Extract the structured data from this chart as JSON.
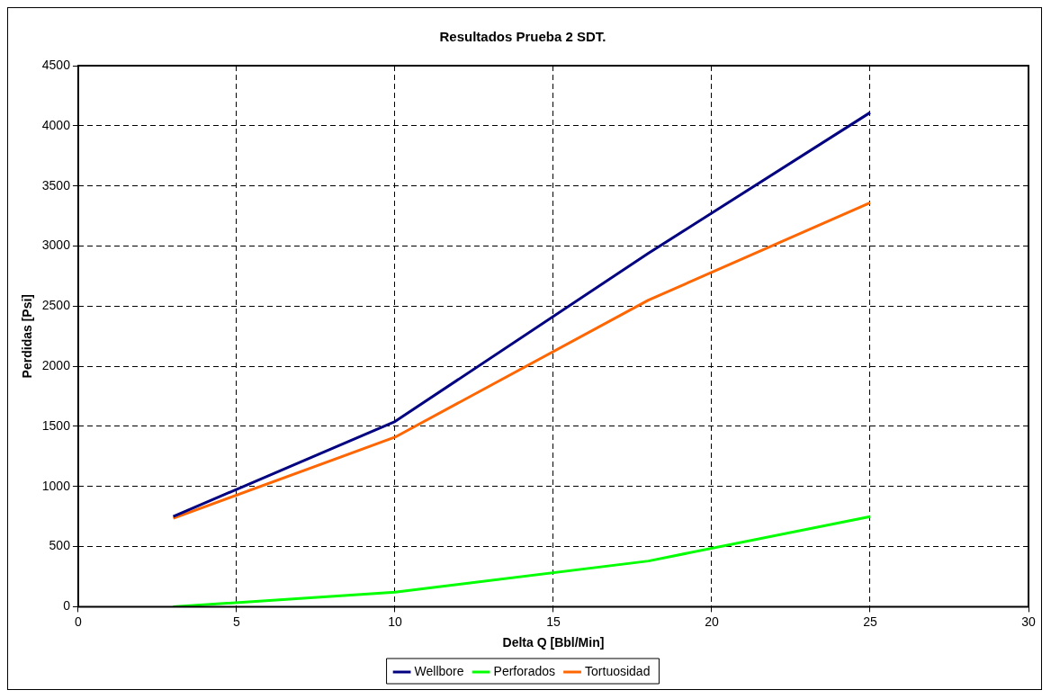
{
  "chart_data": {
    "type": "line",
    "title": "Resultados Prueba 2 SDT.",
    "xlabel": "Delta Q [Bbl/Min]",
    "ylabel": "Perdidas [Psi]",
    "x": [
      3,
      10,
      18,
      25
    ],
    "series": [
      {
        "name": "Wellbore",
        "color": "#000080",
        "values": [
          750,
          1540,
          2940,
          4110
        ]
      },
      {
        "name": "Perforados",
        "color": "#00ff00",
        "values": [
          0,
          120,
          380,
          750
        ]
      },
      {
        "name": "Tortuosidad",
        "color": "#ff6600",
        "values": [
          735,
          1410,
          2550,
          3360
        ]
      }
    ],
    "xlim": [
      0,
      30
    ],
    "xticks": [
      0,
      5,
      10,
      15,
      20,
      25,
      30
    ],
    "ylim": [
      0,
      4500
    ],
    "yticks": [
      0,
      500,
      1000,
      1500,
      2000,
      2500,
      3000,
      3500,
      4000,
      4500
    ],
    "grid": true,
    "legend": "bottom",
    "marker": "none",
    "line_style": "solid"
  }
}
